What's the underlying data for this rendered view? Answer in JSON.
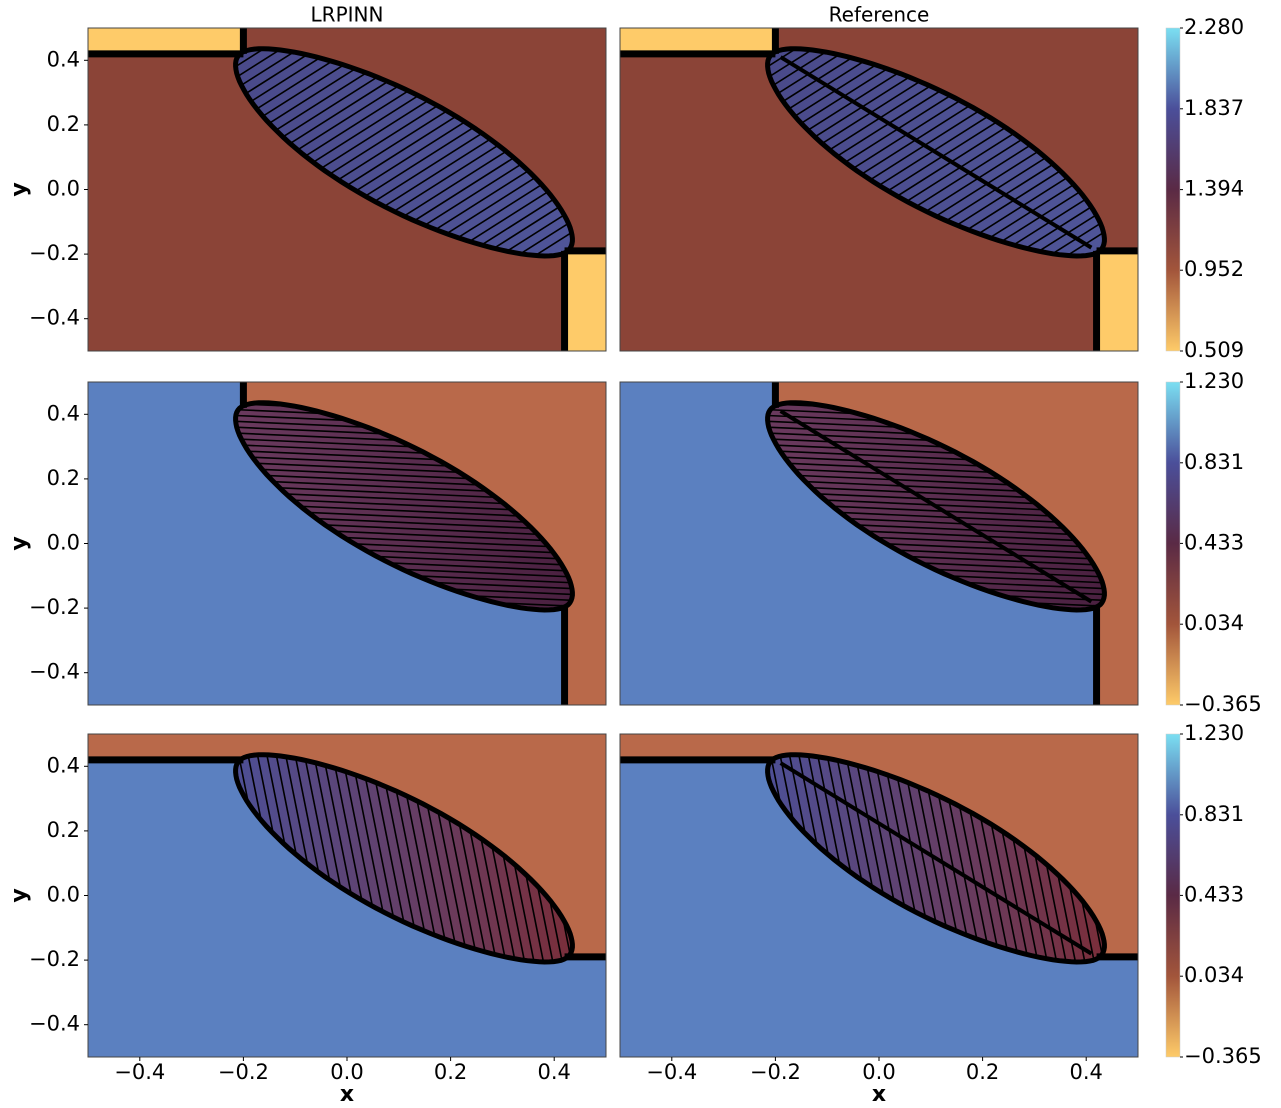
{
  "chart_data": [
    {
      "type": "contour",
      "title": "LRPINN",
      "xlim": [
        -0.5,
        0.5
      ],
      "ylim": [
        -0.5,
        0.5
      ],
      "ylabel": "y",
      "yticks": [
        {
          "value": -0.4,
          "label": "−0.4"
        },
        {
          "value": -0.2,
          "label": "−0.2"
        },
        {
          "value": 0,
          "label": "0.0"
        },
        0.2,
        0.4
      ]
    },
    {
      "type": "contour",
      "title": "Reference",
      "xlim": [
        -0.5,
        0.5
      ],
      "ylim": [
        -0.5,
        0.5
      ]
    },
    {
      "type": "colorbar",
      "clim": [
        0.509,
        2.28
      ],
      "colors": [
        "#fecb69",
        "#a2553b",
        "#5a2a45",
        "#4b4f9a",
        "#7bdff2"
      ],
      "ticks": [
        0.509,
        0.952,
        1.394,
        1.837,
        {
          "value": 2.28,
          "label": "2.280"
        }
      ]
    },
    {
      "type": "contour",
      "xlim": [
        -0.5,
        0.5
      ],
      "ylim": [
        -0.5,
        0.5
      ],
      "ylabel": "y",
      "yticks": [
        {
          "value": -0.4,
          "label": "−0.4"
        },
        {
          "value": -0.2,
          "label": "−0.2"
        },
        {
          "value": 0,
          "label": "0.0"
        },
        0.2,
        0.4
      ]
    },
    {
      "type": "contour",
      "xlim": [
        -0.5,
        0.5
      ],
      "ylim": [
        -0.5,
        0.5
      ]
    },
    {
      "type": "colorbar",
      "clim": [
        -0.365,
        1.23
      ],
      "colors": [
        "#fecb69",
        "#a2553b",
        "#5a2a45",
        "#4b4f9a",
        "#7bdff2"
      ],
      "ticks": [
        {
          "value": -0.365,
          "label": "−0.365"
        },
        0.034,
        0.433,
        0.831,
        {
          "value": 1.23,
          "label": "1.230"
        }
      ]
    },
    {
      "type": "contour",
      "xlim": [
        -0.5,
        0.5
      ],
      "ylim": [
        -0.5,
        0.5
      ],
      "ylabel": "y",
      "xlabel": "x",
      "yticks": [
        {
          "value": -0.4,
          "label": "−0.4"
        },
        {
          "value": -0.2,
          "label": "−0.2"
        },
        {
          "value": 0,
          "label": "0.0"
        },
        0.2,
        0.4
      ],
      "xticks": [
        {
          "value": -0.4,
          "label": "−0.4"
        },
        {
          "value": -0.2,
          "label": "−0.2"
        },
        {
          "value": 0,
          "label": "0.0"
        },
        0.2,
        0.4
      ]
    },
    {
      "type": "contour",
      "xlim": [
        -0.5,
        0.5
      ],
      "ylim": [
        -0.5,
        0.5
      ],
      "xlabel": "x",
      "xticks": [
        {
          "value": -0.4,
          "label": "−0.4"
        },
        {
          "value": -0.2,
          "label": "−0.2"
        },
        {
          "value": 0,
          "label": "0.0"
        },
        0.2,
        0.4
      ]
    },
    {
      "type": "colorbar",
      "clim": [
        -0.365,
        1.23
      ],
      "colors": [
        "#fecb69",
        "#a2553b",
        "#5a2a45",
        "#4b4f9a",
        "#7bdff2"
      ],
      "ticks": [
        {
          "value": -0.365,
          "label": "−0.365"
        },
        0.034,
        0.433,
        0.831,
        {
          "value": 1.23,
          "label": "1.230"
        }
      ]
    }
  ]
}
